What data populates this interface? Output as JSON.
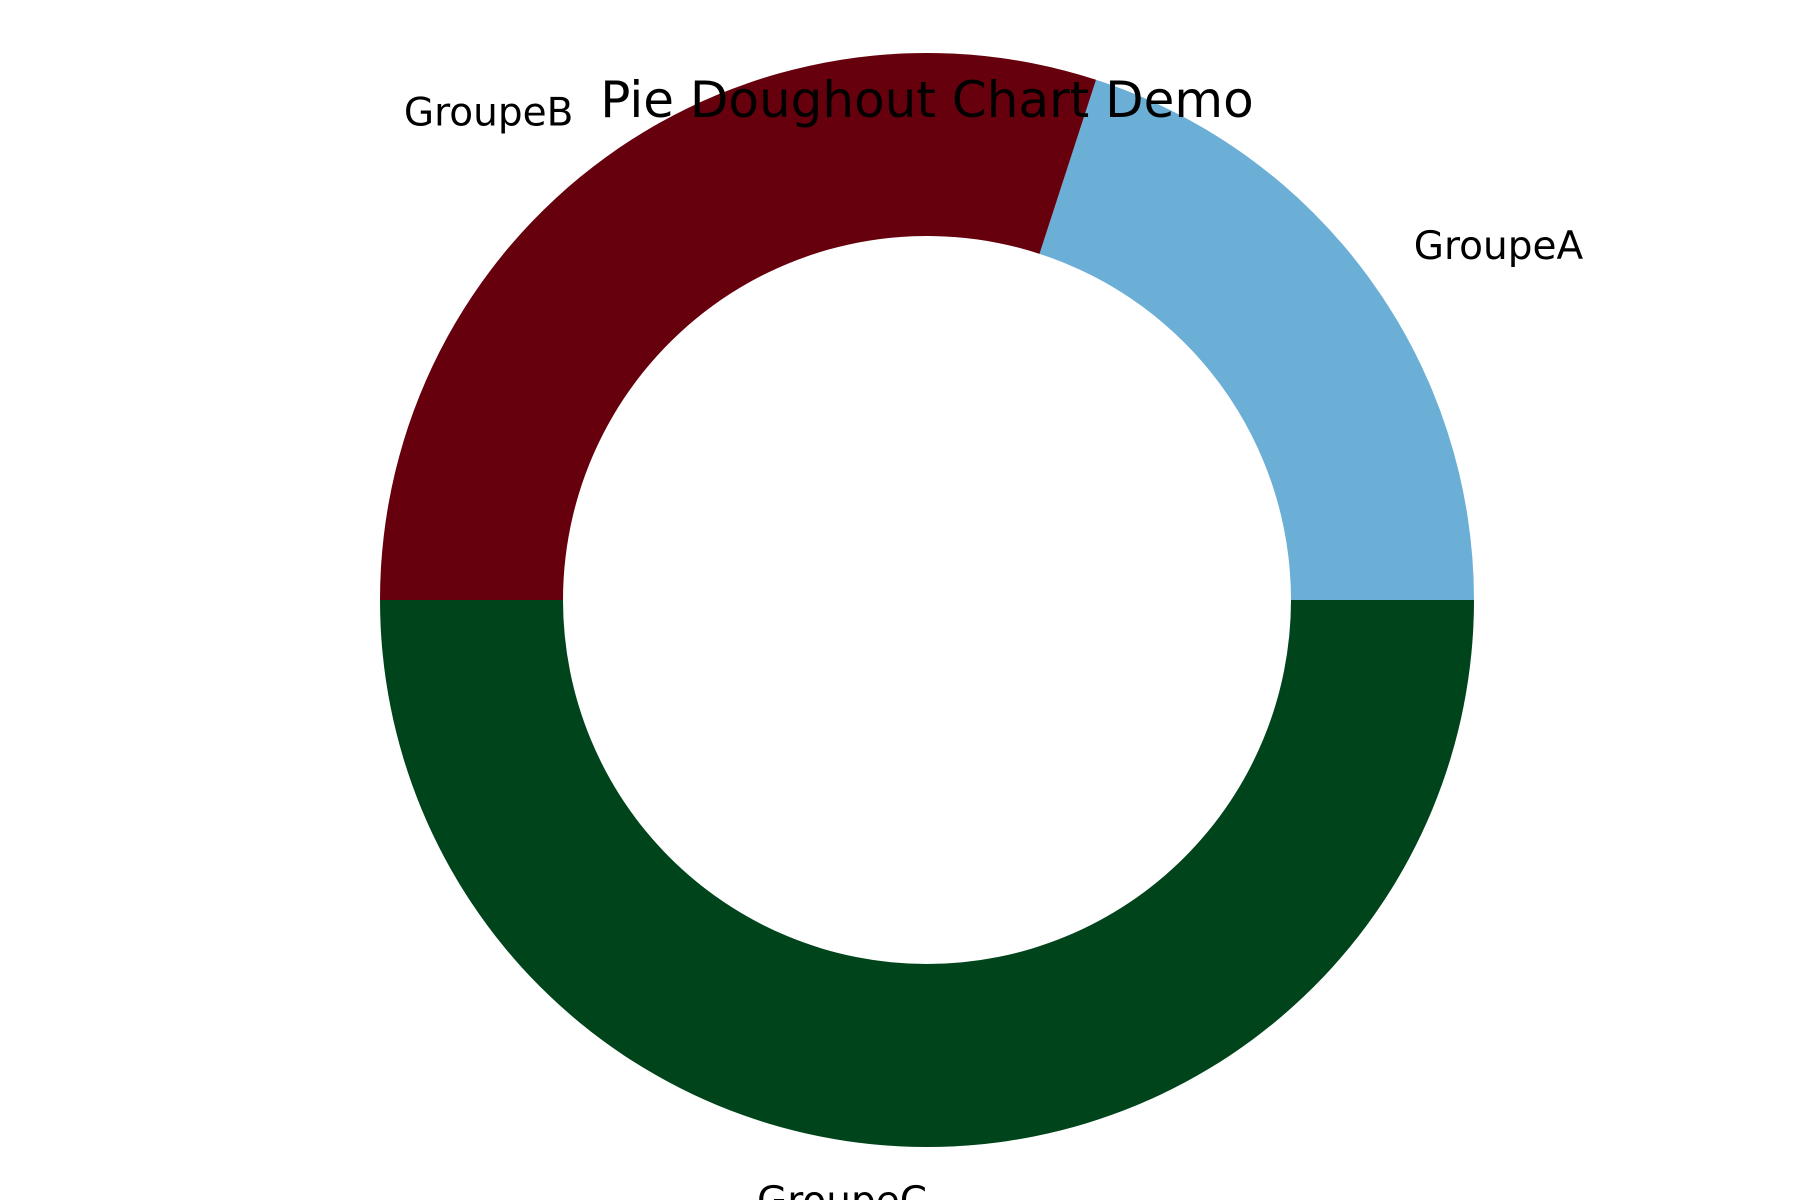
{
  "chart_data": {
    "type": "pie",
    "variant": "donut",
    "title": "Pie Doughout Chart Demo",
    "categories": [
      "GroupeA",
      "GroupeB",
      "GroupeC"
    ],
    "values": [
      20,
      30,
      50
    ],
    "colors": [
      "#6baed6",
      "#67000d",
      "#00441b"
    ],
    "start_angle_deg": 0,
    "direction": "counterclockwise",
    "legend": "none"
  }
}
